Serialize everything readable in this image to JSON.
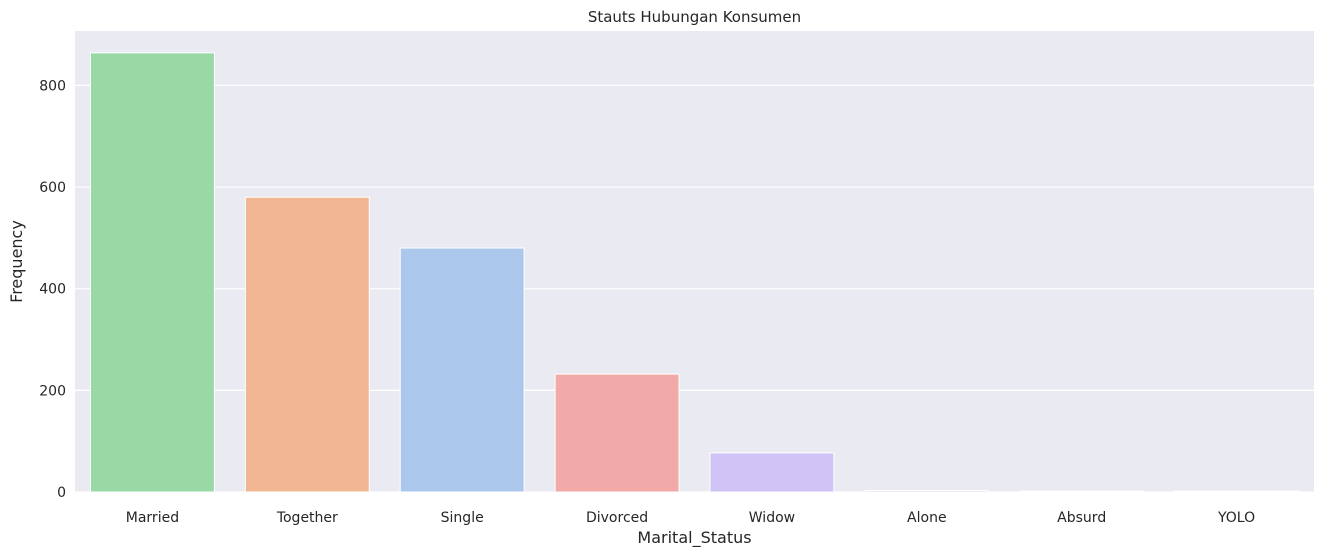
{
  "chart_data": {
    "type": "bar",
    "title": "Stauts Hubungan Konsumen",
    "xlabel": "Marital_Status",
    "ylabel": "Frequency",
    "categories": [
      "Married",
      "Together",
      "Single",
      "Divorced",
      "Widow",
      "Alone",
      "Absurd",
      "YOLO"
    ],
    "values": [
      864,
      580,
      480,
      232,
      77,
      3,
      2,
      2
    ],
    "colors": [
      "#98d9a6",
      "#f1b792",
      "#abc8ec",
      "#f1aaa8",
      "#d0c3f5",
      "#dfd9ee",
      "#e6dccd",
      "#f0d5e3"
    ],
    "ylim": [
      0,
      907
    ],
    "yticks": [
      0,
      200,
      400,
      600,
      800
    ],
    "grid": true,
    "background": "#eaeaf2",
    "grid_color": "#ffffff"
  }
}
